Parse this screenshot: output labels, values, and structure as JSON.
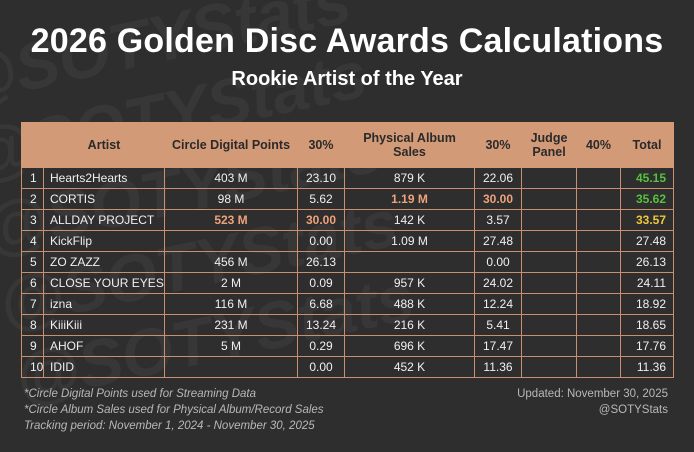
{
  "watermark": "@SOTYStats",
  "header": {
    "title": "2026 Golden Disc Awards Calculations",
    "subtitle": "Rookie Artist of the Year"
  },
  "table": {
    "columns": {
      "rank": "",
      "artist": "Artist",
      "digital": "Circle Digital Points",
      "digital_pct": "30%",
      "physical": "Physical Album Sales",
      "physical_pct": "30%",
      "judge": "Judge Panel",
      "judge_pct": "40%",
      "total": "Total"
    },
    "rows": [
      {
        "rank": "1",
        "artist": "Hearts2Hearts",
        "digital": "403 M",
        "digital_pct": "23.10",
        "physical": "879 K",
        "physical_pct": "22.06",
        "judge": "",
        "judge_pct": "",
        "total": "45.15"
      },
      {
        "rank": "2",
        "artist": "CORTIS",
        "digital": "98 M",
        "digital_pct": "5.62",
        "physical": "1.19 M",
        "physical_pct": "30.00",
        "judge": "",
        "judge_pct": "",
        "total": "35.62"
      },
      {
        "rank": "3",
        "artist": "ALLDAY PROJECT",
        "digital": "523 M",
        "digital_pct": "30.00",
        "physical": "142 K",
        "physical_pct": "3.57",
        "judge": "",
        "judge_pct": "",
        "total": "33.57"
      },
      {
        "rank": "4",
        "artist": "KickFlip",
        "digital": "",
        "digital_pct": "0.00",
        "physical": "1.09 M",
        "physical_pct": "27.48",
        "judge": "",
        "judge_pct": "",
        "total": "27.48"
      },
      {
        "rank": "5",
        "artist": "ZO ZAZZ",
        "digital": "456 M",
        "digital_pct": "26.13",
        "physical": "",
        "physical_pct": "0.00",
        "judge": "",
        "judge_pct": "",
        "total": "26.13"
      },
      {
        "rank": "6",
        "artist": "CLOSE YOUR EYES",
        "digital": "2 M",
        "digital_pct": "0.09",
        "physical": "957 K",
        "physical_pct": "24.02",
        "judge": "",
        "judge_pct": "",
        "total": "24.11"
      },
      {
        "rank": "7",
        "artist": "izna",
        "digital": "116 M",
        "digital_pct": "6.68",
        "physical": "488 K",
        "physical_pct": "12.24",
        "judge": "",
        "judge_pct": "",
        "total": "18.92"
      },
      {
        "rank": "8",
        "artist": "KiiiKiii",
        "digital": "231 M",
        "digital_pct": "13.24",
        "physical": "216 K",
        "physical_pct": "5.41",
        "judge": "",
        "judge_pct": "",
        "total": "18.65"
      },
      {
        "rank": "9",
        "artist": "AHOF",
        "digital": "5 M",
        "digital_pct": "0.29",
        "physical": "696 K",
        "physical_pct": "17.47",
        "judge": "",
        "judge_pct": "",
        "total": "17.76"
      },
      {
        "rank": "10",
        "artist": "IDID",
        "digital": "",
        "digital_pct": "0.00",
        "physical": "452 K",
        "physical_pct": "11.36",
        "judge": "",
        "judge_pct": "",
        "total": "11.36"
      }
    ]
  },
  "footer": {
    "note1": "*Circle Digital Points used for Streaming Data",
    "note2": "*Circle Album Sales used for Physical Album/Record Sales",
    "note3": "Tracking period: November 1, 2024 - November 30, 2025",
    "updated": "Updated: November 30, 2025",
    "handle": "@SOTYStats"
  },
  "colors": {
    "background": "#2e2e2e",
    "header_fill": "#d39a78",
    "highlight_top_value": "#f0a27a",
    "total_first": "#57c13f",
    "total_second": "#57c13f",
    "total_third": "#efc63a"
  }
}
